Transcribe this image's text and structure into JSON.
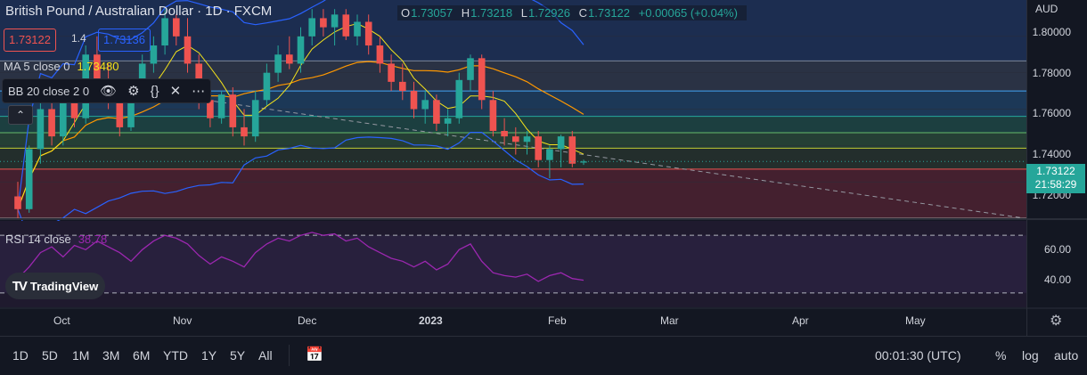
{
  "header": {
    "title": "British Pound / Australian Dollar · 1D · FXCM",
    "ohlc": [
      {
        "k": "O",
        "v": "1.73057"
      },
      {
        "k": "H",
        "v": "1.73218"
      },
      {
        "k": "L",
        "v": "1.72926"
      },
      {
        "k": "C",
        "v": "1.73122"
      },
      {
        "k": "",
        "v": "+0.00065 (+0.04%)"
      }
    ],
    "bid": "1.73122",
    "spread": "1.4",
    "ask": "1.73136",
    "currency": "AUD"
  },
  "indicators": {
    "ma": {
      "label": "MA 5 close 0",
      "value": "1.73480"
    },
    "bb": {
      "label": "BB 20 close 2 0",
      "icons": [
        "eye-icon",
        "gear-icon",
        "braces-icon",
        "close-icon",
        "more-icon"
      ]
    },
    "rsi": {
      "label": "RSI 14 close",
      "value": "38.78"
    }
  },
  "price_axis": {
    "labels": [
      "1.80000",
      "1.78000",
      "1.76000",
      "1.74000",
      "1.72000"
    ],
    "current_price": "1.73122",
    "countdown": "21:58:29"
  },
  "rsi_axis": {
    "labels": [
      "60.00",
      "40.00"
    ]
  },
  "time_axis": {
    "labels": [
      "Oct",
      "Nov",
      "Dec",
      "2023",
      "Mar",
      "Apr",
      "May",
      "Feb"
    ]
  },
  "brand": {
    "name": "TradingView"
  },
  "toolbar": {
    "timeframes": [
      "1D",
      "5D",
      "1M",
      "3M",
      "6M",
      "YTD",
      "1Y",
      "5Y",
      "All"
    ],
    "clock": "00:01:30 (UTC)",
    "percent": "%",
    "log": "log",
    "auto": "auto"
  },
  "colors": {
    "bg": "#131722",
    "up": "#26a69a",
    "down": "#ef5350",
    "ma": "#f5e31b",
    "rsi": "#9c27b0",
    "bb_basis": "#ff9800",
    "bb_band": "#2962ff"
  },
  "chart_data": {
    "type": "candlestick",
    "symbol": "GBPAUD",
    "y_range": [
      1.705,
      1.81
    ],
    "candles": [
      {
        "o": 1.712,
        "h": 1.72,
        "l": 1.7,
        "c": 1.705
      },
      {
        "o": 1.705,
        "h": 1.74,
        "l": 1.703,
        "c": 1.738
      },
      {
        "o": 1.738,
        "h": 1.765,
        "l": 1.73,
        "c": 1.76
      },
      {
        "o": 1.76,
        "h": 1.768,
        "l": 1.74,
        "c": 1.745
      },
      {
        "o": 1.745,
        "h": 1.77,
        "l": 1.74,
        "c": 1.765
      },
      {
        "o": 1.765,
        "h": 1.775,
        "l": 1.75,
        "c": 1.755
      },
      {
        "o": 1.755,
        "h": 1.795,
        "l": 1.752,
        "c": 1.79
      },
      {
        "o": 1.79,
        "h": 1.8,
        "l": 1.77,
        "c": 1.775
      },
      {
        "o": 1.775,
        "h": 1.785,
        "l": 1.76,
        "c": 1.765
      },
      {
        "o": 1.765,
        "h": 1.77,
        "l": 1.745,
        "c": 1.75
      },
      {
        "o": 1.75,
        "h": 1.77,
        "l": 1.748,
        "c": 1.768
      },
      {
        "o": 1.768,
        "h": 1.79,
        "l": 1.765,
        "c": 1.785
      },
      {
        "o": 1.785,
        "h": 1.8,
        "l": 1.78,
        "c": 1.795
      },
      {
        "o": 1.795,
        "h": 1.815,
        "l": 1.79,
        "c": 1.81
      },
      {
        "o": 1.81,
        "h": 1.812,
        "l": 1.795,
        "c": 1.8
      },
      {
        "o": 1.8,
        "h": 1.81,
        "l": 1.78,
        "c": 1.785
      },
      {
        "o": 1.785,
        "h": 1.79,
        "l": 1.76,
        "c": 1.765
      },
      {
        "o": 1.765,
        "h": 1.77,
        "l": 1.75,
        "c": 1.755
      },
      {
        "o": 1.755,
        "h": 1.77,
        "l": 1.752,
        "c": 1.768
      },
      {
        "o": 1.768,
        "h": 1.772,
        "l": 1.745,
        "c": 1.75
      },
      {
        "o": 1.75,
        "h": 1.76,
        "l": 1.74,
        "c": 1.745
      },
      {
        "o": 1.745,
        "h": 1.77,
        "l": 1.742,
        "c": 1.765
      },
      {
        "o": 1.765,
        "h": 1.785,
        "l": 1.762,
        "c": 1.78
      },
      {
        "o": 1.78,
        "h": 1.795,
        "l": 1.775,
        "c": 1.79
      },
      {
        "o": 1.79,
        "h": 1.8,
        "l": 1.782,
        "c": 1.785
      },
      {
        "o": 1.785,
        "h": 1.805,
        "l": 1.78,
        "c": 1.8
      },
      {
        "o": 1.8,
        "h": 1.815,
        "l": 1.795,
        "c": 1.81
      },
      {
        "o": 1.81,
        "h": 1.815,
        "l": 1.8,
        "c": 1.805
      },
      {
        "o": 1.805,
        "h": 1.815,
        "l": 1.795,
        "c": 1.812
      },
      {
        "o": 1.812,
        "h": 1.815,
        "l": 1.798,
        "c": 1.8
      },
      {
        "o": 1.8,
        "h": 1.812,
        "l": 1.795,
        "c": 1.808
      },
      {
        "o": 1.808,
        "h": 1.812,
        "l": 1.79,
        "c": 1.795
      },
      {
        "o": 1.795,
        "h": 1.8,
        "l": 1.78,
        "c": 1.785
      },
      {
        "o": 1.785,
        "h": 1.79,
        "l": 1.77,
        "c": 1.775
      },
      {
        "o": 1.775,
        "h": 1.785,
        "l": 1.765,
        "c": 1.77
      },
      {
        "o": 1.77,
        "h": 1.775,
        "l": 1.755,
        "c": 1.76
      },
      {
        "o": 1.76,
        "h": 1.77,
        "l": 1.752,
        "c": 1.765
      },
      {
        "o": 1.765,
        "h": 1.768,
        "l": 1.748,
        "c": 1.752
      },
      {
        "o": 1.752,
        "h": 1.76,
        "l": 1.745,
        "c": 1.755
      },
      {
        "o": 1.755,
        "h": 1.78,
        "l": 1.752,
        "c": 1.776
      },
      {
        "o": 1.776,
        "h": 1.79,
        "l": 1.77,
        "c": 1.788
      },
      {
        "o": 1.788,
        "h": 1.79,
        "l": 1.76,
        "c": 1.765
      },
      {
        "o": 1.765,
        "h": 1.77,
        "l": 1.745,
        "c": 1.748
      },
      {
        "o": 1.748,
        "h": 1.755,
        "l": 1.74,
        "c": 1.745
      },
      {
        "o": 1.745,
        "h": 1.75,
        "l": 1.735,
        "c": 1.742
      },
      {
        "o": 1.742,
        "h": 1.748,
        "l": 1.735,
        "c": 1.745
      },
      {
        "o": 1.745,
        "h": 1.748,
        "l": 1.728,
        "c": 1.732
      },
      {
        "o": 1.732,
        "h": 1.74,
        "l": 1.722,
        "c": 1.738
      },
      {
        "o": 1.738,
        "h": 1.746,
        "l": 1.728,
        "c": 1.745
      },
      {
        "o": 1.745,
        "h": 1.748,
        "l": 1.728,
        "c": 1.73
      },
      {
        "o": 1.7306,
        "h": 1.7322,
        "l": 1.7293,
        "c": 1.7312
      }
    ],
    "rsi": [
      40,
      48,
      58,
      62,
      55,
      63,
      60,
      66,
      62,
      58,
      52,
      60,
      66,
      70,
      68,
      64,
      56,
      50,
      55,
      52,
      48,
      58,
      64,
      68,
      66,
      70,
      72,
      70,
      71,
      66,
      68,
      62,
      58,
      54,
      52,
      48,
      52,
      46,
      50,
      60,
      64,
      52,
      44,
      42,
      41,
      43,
      38,
      42,
      44,
      40,
      38.78
    ]
  }
}
